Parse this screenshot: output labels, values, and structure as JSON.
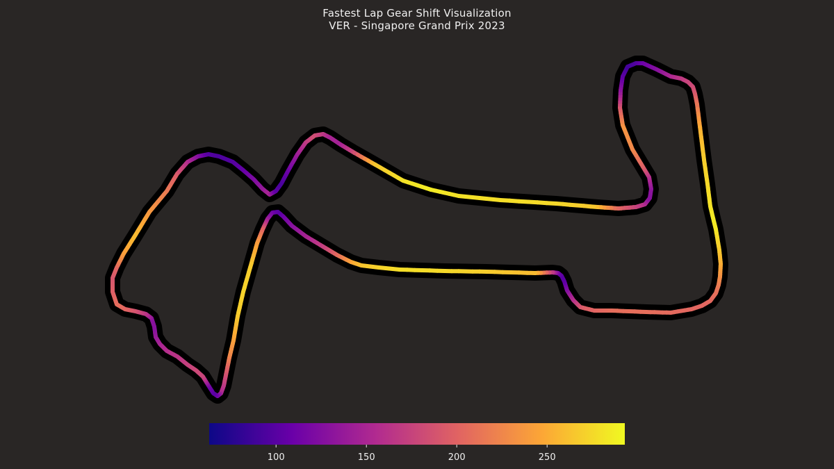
{
  "title": "Fastest Lap Gear Shift Visualization",
  "subtitle": "VER - Singapore Grand Prix 2023",
  "colors": {
    "background": "#292625",
    "track_outline": "#000000",
    "text": "#f0f0f0",
    "colormap": [
      "#0d0887",
      "#6a00a8",
      "#b12a90",
      "#e16462",
      "#fca636",
      "#f0f921"
    ]
  },
  "chart_data": {
    "type": "line",
    "title": "Fastest Lap Gear Shift Visualization",
    "subtitle": "VER - Singapore Grand Prix 2023",
    "colorbar": {
      "colormap": "plasma",
      "range": [
        63,
        293
      ],
      "ticks": [
        100,
        150,
        200,
        250
      ],
      "tick_labels": [
        "100",
        "150",
        "200",
        "250"
      ],
      "placement": "bottom"
    },
    "grid": false,
    "axes_visible": false,
    "track_path": {
      "x": [
        1030,
        1035,
        1037,
        1036,
        1034,
        1030,
        1022,
        1010,
        995,
        965,
        930,
        880,
        855,
        835,
        825,
        816,
        812,
        808,
        803,
        795,
        770,
        700,
        640,
        575,
        545,
        520,
        505,
        485,
        465,
        440,
        420,
        408,
        400,
        392,
        385,
        378,
        370,
        360,
        350,
        342,
        336,
        330,
        326,
        322,
        318,
        313,
        307,
        300,
        292,
        282,
        270,
        255,
        240,
        230,
        224,
        222,
        218,
        210,
        195,
        180,
        168,
        162,
        162,
        168,
        178,
        195,
        215,
        240,
        255,
        270,
        285,
        300,
        315,
        335,
        350,
        365,
        378,
        388,
        397,
        405,
        415,
        428,
        440,
        453,
        465,
        475,
        490,
        510,
        540,
        580,
        620,
        660,
        720,
        800,
        860,
        890,
        915,
        928,
        935,
        937,
        934,
        925,
        910,
        896,
        892,
        893,
        896,
        903,
        915,
        925,
        945,
        965,
        980,
        990,
        997,
        1000,
        1003,
        1008,
        1013,
        1018,
        1022,
        1027,
        1030
      ],
      "y": [
        330,
        360,
        380,
        398,
        410,
        422,
        433,
        440,
        445,
        450,
        449,
        447,
        447,
        442,
        432,
        418,
        405,
        397,
        393,
        392,
        393,
        391,
        390,
        388,
        385,
        382,
        377,
        367,
        355,
        340,
        325,
        312,
        305,
        306,
        315,
        330,
        350,
        385,
        420,
        455,
        490,
        515,
        535,
        555,
        566,
        570,
        566,
        555,
        542,
        533,
        525,
        513,
        505,
        495,
        485,
        470,
        458,
        452,
        448,
        445,
        438,
        420,
        400,
        385,
        365,
        338,
        305,
        275,
        250,
        233,
        225,
        222,
        225,
        233,
        245,
        258,
        272,
        280,
        275,
        264,
        245,
        222,
        205,
        195,
        193,
        198,
        208,
        220,
        237,
        260,
        273,
        282,
        288,
        293,
        298,
        300,
        298,
        294,
        285,
        272,
        255,
        240,
        215,
        180,
        155,
        130,
        110,
        96,
        91,
        91,
        100,
        110,
        113,
        118,
        125,
        135,
        150,
        190,
        230,
        265,
        297,
        318,
        330
      ],
      "values": [
        283,
        268,
        253,
        235,
        220,
        210,
        205,
        202,
        203,
        205,
        208,
        208,
        202,
        195,
        165,
        130,
        105,
        100,
        110,
        160,
        258,
        268,
        275,
        278,
        272,
        265,
        250,
        210,
        175,
        150,
        130,
        115,
        100,
        108,
        135,
        195,
        238,
        268,
        272,
        268,
        245,
        225,
        195,
        170,
        155,
        120,
        100,
        115,
        175,
        180,
        175,
        165,
        160,
        150,
        140,
        128,
        130,
        160,
        185,
        200,
        208,
        198,
        190,
        200,
        240,
        260,
        238,
        218,
        195,
        160,
        130,
        100,
        95,
        98,
        105,
        120,
        135,
        150,
        105,
        92,
        110,
        140,
        165,
        185,
        170,
        150,
        145,
        180,
        265,
        280,
        285,
        280,
        278,
        275,
        265,
        205,
        178,
        160,
        128,
        130,
        155,
        195,
        225,
        235,
        195,
        135,
        105,
        90,
        95,
        110,
        125,
        150,
        165,
        175,
        180,
        190,
        210,
        255,
        268,
        275,
        280,
        285,
        283
      ]
    }
  }
}
